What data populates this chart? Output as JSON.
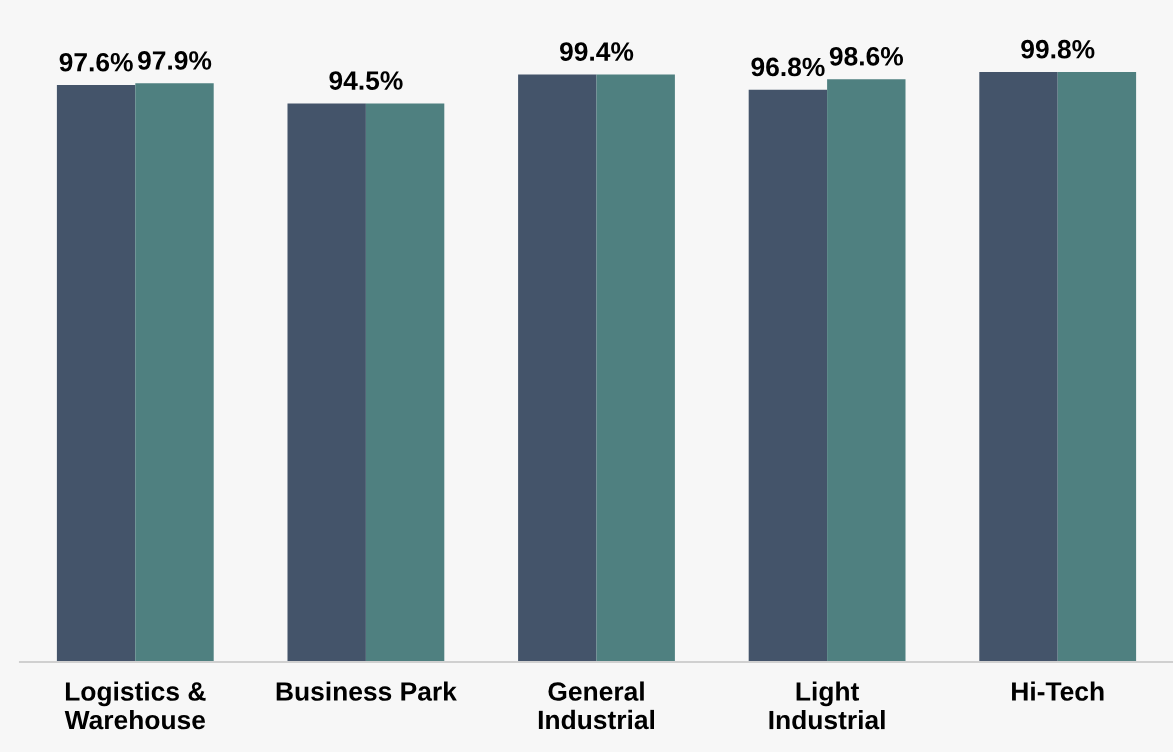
{
  "chart_data": {
    "type": "bar",
    "categories": [
      "Logistics &\nWarehouse",
      "Business Park",
      "General\nIndustrial",
      "Light\nIndustrial",
      "Hi-Tech"
    ],
    "series": [
      {
        "color": "#44546a",
        "values": [
          97.6,
          94.5,
          99.4,
          96.8,
          99.8
        ],
        "value_labels": [
          "97.6%",
          "94.5%",
          "99.4%",
          "96.8%",
          "99.8%"
        ]
      },
      {
        "color": "#4f8080",
        "values": [
          97.9,
          94.5,
          99.4,
          98.6,
          99.8
        ],
        "value_labels": [
          "97.9%",
          null,
          null,
          "98.6%",
          null
        ]
      }
    ],
    "ylim": [
      0,
      112
    ],
    "tick_labels": "x"
  }
}
